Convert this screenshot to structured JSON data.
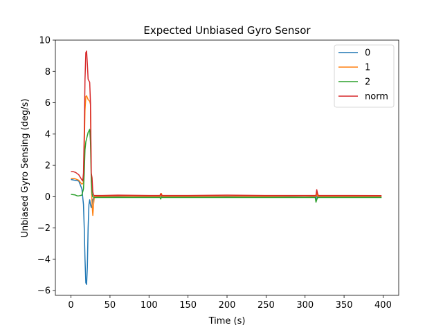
{
  "chart_data": {
    "type": "line",
    "title": "Expected Unbiased Gyro Sensor",
    "xlabel": "Time (s)",
    "ylabel": "Unbiased Gyro Sensing (deg/s)",
    "xlim": [
      -20,
      420
    ],
    "ylim": [
      -6.3,
      10.0
    ],
    "xticks": [
      0,
      50,
      100,
      150,
      200,
      250,
      300,
      350,
      400
    ],
    "yticks": [
      -6,
      -4,
      -2,
      0,
      2,
      4,
      6,
      8,
      10
    ],
    "grid": false,
    "legend_position": "top-right",
    "series": [
      {
        "name": "0",
        "color": "#1f77b4",
        "x": [
          0,
          5,
          10,
          14,
          16,
          17,
          18,
          19,
          20,
          21,
          22,
          23,
          24,
          25,
          26,
          27,
          28,
          29,
          30,
          40,
          60,
          80,
          100,
          114,
          115,
          116,
          117,
          130,
          160,
          200,
          240,
          280,
          300,
          313,
          314,
          315,
          316,
          317,
          320,
          350,
          380,
          398
        ],
        "y": [
          1.1,
          1.05,
          1.0,
          0.5,
          -0.5,
          -2.0,
          -4.0,
          -5.5,
          -5.6,
          -4.5,
          -2.0,
          -0.5,
          -0.2,
          -0.5,
          -0.7,
          -0.5,
          -0.2,
          -0.1,
          -0.05,
          -0.02,
          -0.02,
          -0.03,
          -0.02,
          -0.02,
          0.15,
          -0.05,
          -0.02,
          -0.02,
          -0.03,
          -0.02,
          -0.03,
          -0.02,
          -0.03,
          -0.02,
          -0.2,
          0.35,
          -0.1,
          -0.02,
          -0.03,
          -0.03,
          -0.03,
          -0.03
        ]
      },
      {
        "name": "1",
        "color": "#ff7f0e",
        "x": [
          0,
          5,
          10,
          14,
          16,
          17,
          18,
          19,
          20,
          22,
          24,
          25,
          26,
          27,
          28,
          29,
          30,
          31,
          40,
          60,
          100,
          115,
          116,
          117,
          150,
          200,
          250,
          300,
          314,
          315,
          316,
          320,
          360,
          398
        ],
        "y": [
          1.15,
          1.15,
          1.05,
          0.8,
          0.9,
          3.0,
          5.5,
          6.4,
          6.45,
          6.2,
          6.1,
          5.9,
          1.0,
          -0.5,
          -1.2,
          -0.5,
          0.05,
          0.03,
          0.03,
          0.04,
          0.03,
          0.03,
          0.2,
          0.03,
          0.03,
          0.04,
          0.03,
          0.04,
          0.03,
          0.25,
          0.02,
          0.03,
          0.03,
          0.03
        ]
      },
      {
        "name": "2",
        "color": "#2ca02c",
        "x": [
          0,
          5,
          8,
          10,
          14,
          16,
          17,
          18,
          19,
          20,
          22,
          24,
          25,
          26,
          27,
          28,
          30,
          40,
          60,
          100,
          114,
          115,
          116,
          117,
          150,
          200,
          250,
          300,
          313,
          314,
          315,
          316,
          318,
          350,
          398
        ],
        "y": [
          0.15,
          0.12,
          0.05,
          0.05,
          0.1,
          0.5,
          1.5,
          3.0,
          3.5,
          3.7,
          4.1,
          4.3,
          3.5,
          1.0,
          0.2,
          0.0,
          -0.05,
          -0.05,
          -0.05,
          -0.05,
          -0.05,
          -0.15,
          -0.02,
          -0.05,
          -0.05,
          -0.05,
          -0.05,
          -0.05,
          -0.05,
          -0.35,
          -0.2,
          -0.05,
          -0.05,
          -0.05,
          -0.05
        ]
      },
      {
        "name": "norm",
        "color": "#d62728",
        "x": [
          0,
          3,
          6,
          10,
          13,
          15,
          16,
          17,
          18,
          19,
          20,
          21,
          22,
          23,
          24,
          25,
          26,
          27,
          28,
          29,
          30,
          40,
          60,
          100,
          114,
          115,
          116,
          117,
          150,
          200,
          250,
          300,
          313,
          314,
          315,
          316,
          317,
          350,
          398
        ],
        "y": [
          1.6,
          1.6,
          1.55,
          1.4,
          1.15,
          1.0,
          1.5,
          4.0,
          7.5,
          9.2,
          9.3,
          8.5,
          7.5,
          7.4,
          7.3,
          6.0,
          1.5,
          1.2,
          0.3,
          0.1,
          0.08,
          0.08,
          0.1,
          0.08,
          0.08,
          0.2,
          0.1,
          0.08,
          0.08,
          0.1,
          0.08,
          0.08,
          0.08,
          0.1,
          0.45,
          0.2,
          0.08,
          0.08,
          0.07
        ]
      }
    ]
  }
}
